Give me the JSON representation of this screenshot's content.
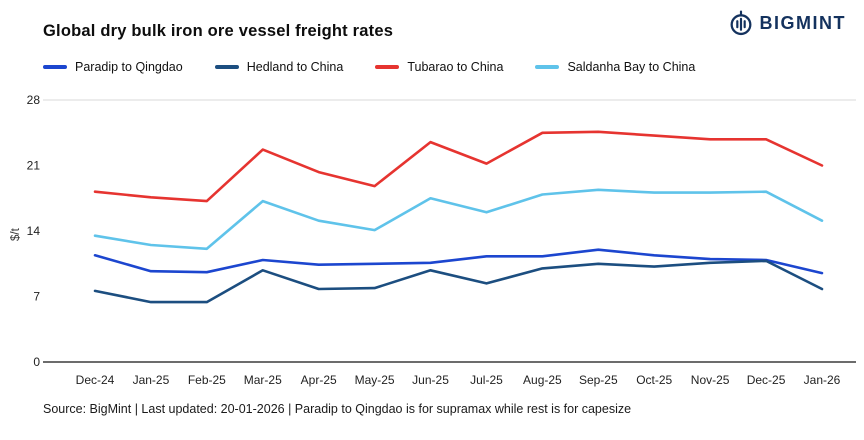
{
  "header": {
    "title": "Global dry bulk iron ore vessel freight rates",
    "brand": "BIGMINT",
    "brand_color": "#14325e"
  },
  "chart_data": {
    "type": "line",
    "title": "Global dry bulk iron ore vessel freight rates",
    "x": [
      "Dec-24",
      "Jan-25",
      "Feb-25",
      "Mar-25",
      "Apr-25",
      "May-25",
      "Jun-25",
      "Jul-25",
      "Aug-25",
      "Sep-25",
      "Oct-25",
      "Nov-25",
      "Dec-25",
      "Jan-26"
    ],
    "series": [
      {
        "name": "Paradip to Qingdao",
        "color": "#1c46cf",
        "values": [
          11.4,
          9.7,
          9.6,
          10.9,
          10.4,
          10.5,
          10.6,
          11.3,
          11.3,
          12.0,
          11.4,
          11.0,
          10.9,
          9.5
        ]
      },
      {
        "name": "Hedland to China",
        "color": "#1c4e80",
        "values": [
          7.6,
          6.4,
          6.4,
          9.8,
          7.8,
          7.9,
          9.8,
          8.4,
          10.0,
          10.5,
          10.2,
          10.6,
          10.8,
          7.8
        ]
      },
      {
        "name": "Tubarao to China",
        "color": "#e63430",
        "values": [
          18.2,
          17.6,
          17.2,
          22.7,
          20.3,
          18.8,
          23.5,
          21.2,
          24.5,
          24.6,
          24.2,
          23.8,
          23.8,
          21.0
        ]
      },
      {
        "name": "Saldanha Bay to China",
        "color": "#5fc3ea",
        "values": [
          13.5,
          12.5,
          12.1,
          17.2,
          15.1,
          14.1,
          17.5,
          16.0,
          17.9,
          18.4,
          18.1,
          18.1,
          18.2,
          15.1
        ]
      }
    ],
    "xlabel": "",
    "ylabel": "$/t",
    "ylim": [
      0,
      28
    ],
    "yticks": [
      0,
      7,
      14,
      21,
      28
    ],
    "grid": "top-line-only",
    "legend_position": "top"
  },
  "footer": {
    "source": "Source: BigMint | Last updated: 20-01-2026 | Paradip to Qingdao is for supramax while rest is for capesize"
  }
}
